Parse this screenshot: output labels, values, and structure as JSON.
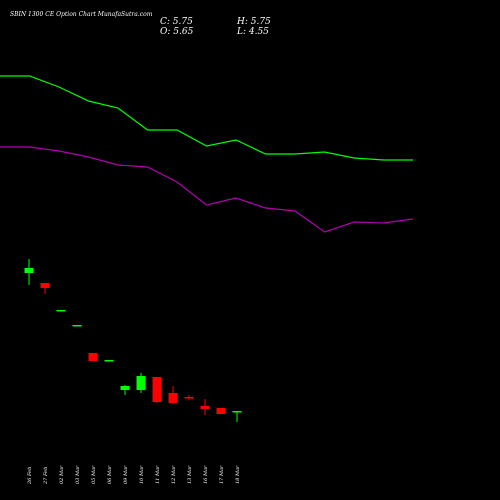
{
  "title": "SBIN 1300 CE Option  Chart MunafaSutra.com",
  "ohlc": {
    "close": "C: 5.75",
    "high": "H: 5.75",
    "open": "O: 5.65",
    "low": "L: 4.55"
  },
  "chart_data": {
    "type": "candlestick",
    "title": "SBIN 1300 CE Option  Chart MunafaSutra.com",
    "xlabel": "",
    "ylabel": "",
    "categories": [
      "26 Feb",
      "27 Feb",
      "02 Mar",
      "03 Mar",
      "05 Mar",
      "06 Mar",
      "09 Mar",
      "10 Mar",
      "11 Mar",
      "12 Mar",
      "13 Mar",
      "16 Mar",
      "17 Mar",
      "18 Mar"
    ],
    "ylim": [
      0,
      500
    ],
    "candles": [
      {
        "open": 227,
        "high": 241,
        "low": 215,
        "close": 232,
        "color": "#00ff00"
      },
      {
        "open": 217,
        "high": 217,
        "low": 206,
        "close": 212,
        "color": "#ff0000"
      },
      {
        "open": 190,
        "high": 190,
        "low": 190,
        "close": 190,
        "color": "#00ff00"
      },
      {
        "open": 175,
        "high": 175,
        "low": 175,
        "close": 175,
        "color": "#00ff00"
      },
      {
        "open": 147,
        "high": 147,
        "low": 139,
        "close": 139,
        "color": "#ff0000"
      },
      {
        "open": 140,
        "high": 140,
        "low": 140,
        "close": 140,
        "color": "#00ff00"
      },
      {
        "open": 110,
        "high": 115,
        "low": 105,
        "close": 114,
        "color": "#00ff00"
      },
      {
        "open": 110,
        "high": 127,
        "low": 107,
        "close": 124,
        "color": "#00ff00"
      },
      {
        "open": 123,
        "high": 123,
        "low": 97,
        "close": 98,
        "color": "#ff0000"
      },
      {
        "open": 107,
        "high": 114,
        "low": 96,
        "close": 97,
        "color": "#ff0000"
      },
      {
        "open": 103,
        "high": 105,
        "low": 100,
        "close": 102,
        "color": "#ff0000"
      },
      {
        "open": 94,
        "high": 101,
        "low": 85,
        "close": 91,
        "color": "#ff0000"
      },
      {
        "open": 92,
        "high": 92,
        "low": 86,
        "close": 86,
        "color": "#ff0000"
      },
      {
        "open": 88,
        "high": 88,
        "low": 78,
        "close": 89,
        "color": "#00ff00"
      }
    ],
    "series": [
      {
        "color": "#00ff00",
        "x": [
          0,
          1,
          2,
          3,
          4,
          5,
          6,
          7,
          8,
          9,
          10,
          11,
          12,
          13,
          14
        ],
        "values": [
          424,
          424,
          413,
          399,
          392,
          370,
          370,
          354,
          360,
          346,
          346,
          348,
          342,
          340,
          340
        ]
      },
      {
        "color": "#b000b0",
        "x": [
          0,
          1,
          2,
          3,
          4,
          5,
          6,
          7,
          8,
          9,
          10,
          11,
          12,
          13,
          14
        ],
        "values": [
          353,
          353,
          349,
          343,
          335,
          333,
          318,
          295,
          302,
          292,
          289,
          268,
          278,
          277,
          281
        ]
      }
    ]
  }
}
